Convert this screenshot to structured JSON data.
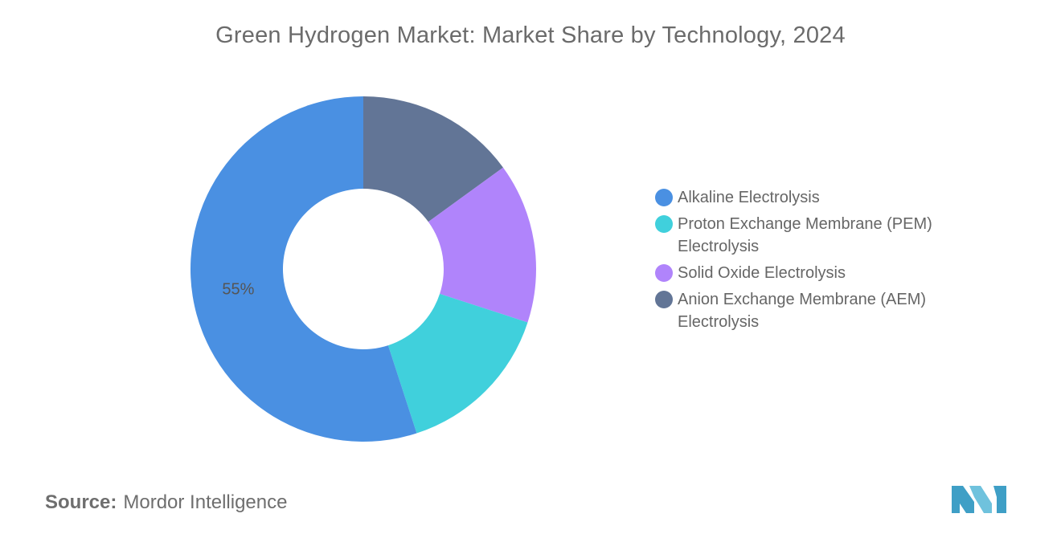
{
  "chart_data": {
    "type": "pie",
    "title": "Green Hydrogen Market: Market Share by Technology, 2024",
    "categories": [
      "Alkaline Electrolysis",
      "Proton Exchange Membrane (PEM) Electrolysis",
      "Solid Oxide Electrolysis",
      "Anion Exchange Membrane (AEM) Electrolysis"
    ],
    "values": [
      55,
      15,
      15,
      15
    ],
    "colors": [
      "#4a90e2",
      "#40d0dc",
      "#b084fb",
      "#627596"
    ],
    "data_labels": [
      "55%",
      "",
      "",
      ""
    ],
    "legend_position": "right",
    "donut": true
  },
  "legend": {
    "items": [
      {
        "label": "Alkaline Electrolysis",
        "color": "#4a90e2"
      },
      {
        "label": "Proton Exchange Membrane (PEM) Electrolysis",
        "color": "#40d0dc"
      },
      {
        "label": "Solid Oxide Electrolysis",
        "color": "#b084fb"
      },
      {
        "label": "Anion Exchange Membrane (AEM) Electrolysis",
        "color": "#627596"
      }
    ]
  },
  "source": {
    "label": "Source:",
    "text": "Mordor Intelligence"
  },
  "logo": {
    "icon": "mordor-intelligence-logo-icon",
    "colors": [
      "#3f9fc6",
      "#6fc2dd"
    ]
  }
}
